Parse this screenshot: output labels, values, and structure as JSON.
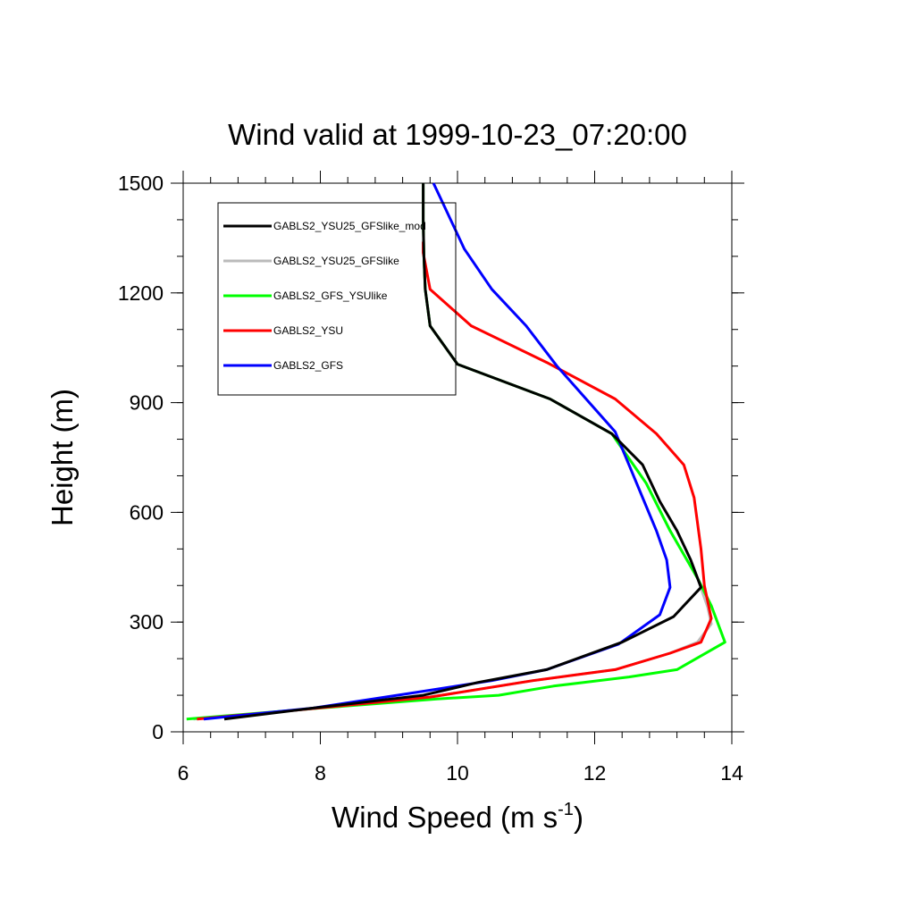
{
  "chart_data": {
    "type": "line",
    "title": "Wind valid at 1999-10-23_07:20:00",
    "xlabel": "Wind Speed (m s",
    "xlabel_sup": "-1",
    "xlabel_end": ")",
    "ylabel": "Height (m)",
    "xlim": [
      6,
      14
    ],
    "ylim": [
      0,
      1500
    ],
    "xticks": [
      6,
      8,
      10,
      12,
      14
    ],
    "yticks": [
      0,
      300,
      600,
      900,
      1200,
      1500
    ],
    "x_minor_step": 0.4,
    "y_minor_step": 100,
    "grid": false,
    "legend_position": "top-left",
    "series": [
      {
        "name": "GABLS2_YSU25_GFSlike_mod",
        "color": "#000000",
        "points": [
          [
            6.6,
            35
          ],
          [
            7.9,
            65
          ],
          [
            9.5,
            100
          ],
          [
            10.3,
            135
          ],
          [
            11.3,
            170
          ],
          [
            12.4,
            245
          ],
          [
            13.15,
            315
          ],
          [
            13.55,
            395
          ],
          [
            13.4,
            470
          ],
          [
            13.2,
            550
          ],
          [
            12.95,
            630
          ],
          [
            12.7,
            730
          ],
          [
            12.25,
            815
          ],
          [
            11.35,
            910
          ],
          [
            10.0,
            1005
          ],
          [
            9.6,
            1110
          ],
          [
            9.53,
            1210
          ],
          [
            9.51,
            1300
          ],
          [
            9.5,
            1400
          ],
          [
            9.5,
            1500
          ]
        ]
      },
      {
        "name": "GABLS2_YSU25_GFSlike",
        "color": "#bbbbbb",
        "points": [
          [
            6.15,
            35
          ],
          [
            7.7,
            60
          ],
          [
            9.6,
            95
          ],
          [
            11.1,
            140
          ],
          [
            12.3,
            170
          ],
          [
            13.1,
            215
          ],
          [
            13.5,
            245
          ],
          [
            13.7,
            295
          ],
          [
            13.65,
            340
          ],
          [
            13.5,
            420
          ],
          [
            13.1,
            550
          ],
          [
            12.75,
            680
          ],
          [
            12.25,
            815
          ],
          [
            11.35,
            910
          ],
          [
            10.0,
            1005
          ],
          [
            9.6,
            1110
          ],
          [
            9.53,
            1210
          ],
          [
            9.51,
            1300
          ],
          [
            9.5,
            1400
          ],
          [
            9.5,
            1500
          ]
        ]
      },
      {
        "name": "GABLS2_GFS_YSUlike",
        "color": "#00ff00",
        "points": [
          [
            6.05,
            35
          ],
          [
            8.0,
            65
          ],
          [
            9.7,
            90
          ],
          [
            10.6,
            100
          ],
          [
            11.4,
            125
          ],
          [
            12.5,
            150
          ],
          [
            13.2,
            170
          ],
          [
            13.9,
            245
          ],
          [
            13.7,
            345
          ],
          [
            13.5,
            420
          ],
          [
            13.1,
            550
          ],
          [
            12.75,
            680
          ],
          [
            12.25,
            815
          ],
          [
            11.35,
            910
          ],
          [
            10.0,
            1005
          ],
          [
            9.6,
            1110
          ],
          [
            9.53,
            1210
          ],
          [
            9.51,
            1300
          ],
          [
            9.5,
            1400
          ],
          [
            9.5,
            1500
          ]
        ]
      },
      {
        "name": "GABLS2_YSU",
        "color": "#ff0000",
        "points": [
          [
            6.2,
            35
          ],
          [
            7.7,
            60
          ],
          [
            9.6,
            95
          ],
          [
            11.1,
            140
          ],
          [
            12.3,
            170
          ],
          [
            13.1,
            215
          ],
          [
            13.55,
            245
          ],
          [
            13.7,
            310
          ],
          [
            13.6,
            400
          ],
          [
            13.55,
            500
          ],
          [
            13.45,
            640
          ],
          [
            13.3,
            730
          ],
          [
            12.9,
            815
          ],
          [
            12.3,
            910
          ],
          [
            11.3,
            1010
          ],
          [
            10.2,
            1110
          ],
          [
            9.6,
            1210
          ],
          [
            9.5,
            1310
          ],
          [
            9.5,
            1340
          ]
        ]
      },
      {
        "name": "GABLS2_GFS",
        "color": "#0000ff",
        "points": [
          [
            6.3,
            35
          ],
          [
            7.9,
            65
          ],
          [
            9.3,
            105
          ],
          [
            10.5,
            140
          ],
          [
            11.3,
            170
          ],
          [
            12.35,
            240
          ],
          [
            12.95,
            320
          ],
          [
            13.1,
            395
          ],
          [
            13.05,
            470
          ],
          [
            12.9,
            550
          ],
          [
            12.7,
            640
          ],
          [
            12.5,
            730
          ],
          [
            12.3,
            820
          ],
          [
            11.9,
            905
          ],
          [
            11.45,
            1000
          ],
          [
            11.0,
            1110
          ],
          [
            10.5,
            1210
          ],
          [
            10.1,
            1320
          ],
          [
            9.8,
            1440
          ],
          [
            9.65,
            1500
          ]
        ]
      }
    ]
  }
}
